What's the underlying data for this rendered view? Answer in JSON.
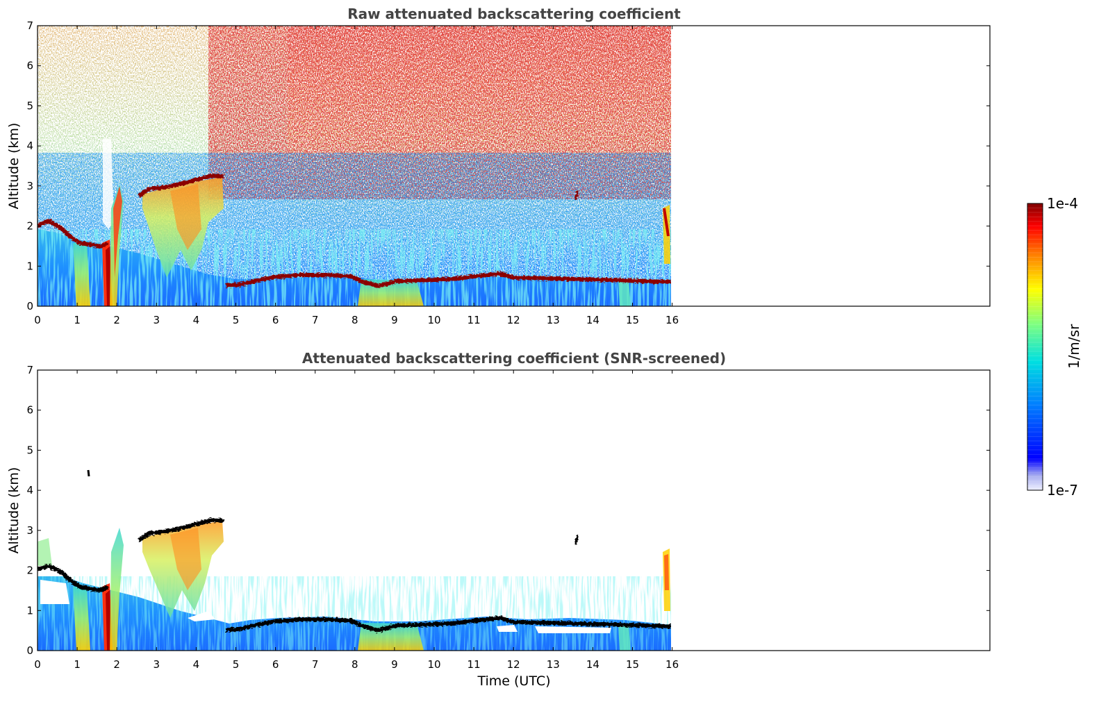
{
  "chart_data": [
    {
      "type": "heatmap",
      "title": "Raw attenuated backscattering coefficient",
      "xlabel": "",
      "ylabel": "Altitude (km)",
      "xlim": [
        0,
        24
      ],
      "ylim": [
        0,
        7
      ],
      "x_ticks": [
        "0",
        "1",
        "2",
        "3",
        "4",
        "5",
        "6",
        "7",
        "8",
        "9",
        "10",
        "11",
        "12",
        "13",
        "14",
        "15",
        "16"
      ],
      "y_ticks": [
        "0",
        "1",
        "2",
        "3",
        "4",
        "5",
        "6",
        "7"
      ],
      "data_end_time": 15.95,
      "layers": [
        {
          "x": [
            0,
            0.5,
            1.0,
            1.5,
            1.8
          ],
          "y": [
            2.1,
            2.0,
            1.8,
            1.6,
            1.5
          ]
        },
        {
          "x": [
            2.6,
            3.0,
            3.5,
            4.0,
            4.7
          ],
          "y": [
            2.8,
            2.9,
            2.95,
            3.1,
            3.25
          ]
        },
        {
          "x": [
            5.0,
            5.5,
            6.0,
            7.0,
            8.0,
            8.5,
            9.0,
            10.0,
            11.0,
            11.5,
            12.0,
            13.0,
            14.0,
            15.0,
            15.9
          ],
          "y": [
            0.5,
            0.6,
            0.7,
            0.75,
            0.75,
            0.55,
            0.6,
            0.7,
            0.75,
            0.8,
            0.7,
            0.7,
            0.65,
            0.65,
            0.6
          ]
        }
      ]
    },
    {
      "type": "heatmap",
      "title": "Attenuated backscattering coefficient (SNR-screened)",
      "xlabel": "Time (UTC)",
      "ylabel": "Altitude (km)",
      "xlim": [
        0,
        24
      ],
      "ylim": [
        0,
        7
      ],
      "x_ticks": [
        "0",
        "1",
        "2",
        "3",
        "4",
        "5",
        "6",
        "7",
        "8",
        "9",
        "10",
        "11",
        "12",
        "13",
        "14",
        "15",
        "16"
      ],
      "y_ticks": [
        "0",
        "1",
        "2",
        "3",
        "4",
        "5",
        "6",
        "7"
      ],
      "data_end_time": 15.95
    }
  ],
  "colorbar": {
    "label": "1/m/sr",
    "max_label": "1e-4",
    "min_label": "1e-7",
    "colormap": "jet"
  },
  "colors": {
    "title": "#444444",
    "layer": "#8b0000",
    "layer_edge_screened": "#000000"
  }
}
